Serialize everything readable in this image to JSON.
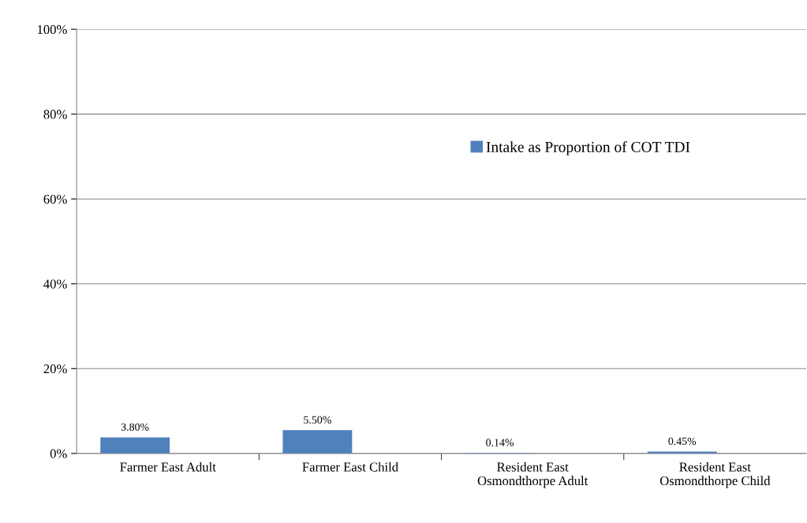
{
  "chart_data": {
    "type": "bar",
    "categories": [
      "Farmer East Adult",
      "Farmer East Child",
      "Resident East\nOsmondthorpe Adult",
      "Resident East\nOsmondthorpe Child"
    ],
    "series": [
      {
        "name": "Intake as Proportion of COT TDI",
        "color": "#4f81bd",
        "values": [
          3.8,
          5.5,
          0.14,
          0.45
        ],
        "value_labels": [
          "3.80%",
          "5.50%",
          "0.14%",
          "0.45%"
        ]
      }
    ],
    "ylim": [
      0,
      100
    ],
    "yticks": [
      {
        "value": 0,
        "label": "0%"
      },
      {
        "value": 20,
        "label": "20%"
      },
      {
        "value": 40,
        "label": "40%"
      },
      {
        "value": 60,
        "label": "60%"
      },
      {
        "value": 80,
        "label": "80%"
      },
      {
        "value": 100,
        "label": "100%"
      }
    ],
    "grid": "y",
    "legend": "right"
  }
}
